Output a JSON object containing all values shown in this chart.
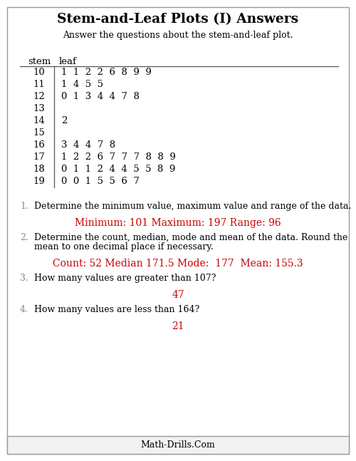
{
  "title": "Stem-and-Leaf Plots (I) Answers",
  "subtitle": "Answer the questions about the stem-and-leaf plot.",
  "stem_header": "stem",
  "leaf_header": "leaf",
  "stems": [
    10,
    11,
    12,
    13,
    14,
    15,
    16,
    17,
    18,
    19
  ],
  "leaves": [
    "1  1  2  2  6  8  9  9",
    "1  4  5  5",
    "0  1  3  4  4  7  8",
    "",
    "2",
    "",
    "3  4  4  7  8",
    "1  2  2  6  7  7  7  8  8  9",
    "0  1  1  2  4  4  5  5  8  9",
    "0  0  1  5  5  6  7"
  ],
  "questions": [
    {
      "number": "1.",
      "text": "Determine the minimum value, maximum value and range of the data.",
      "answer": "Minimum: 101 Maximum: 197 Range: 96"
    },
    {
      "number": "2.",
      "text_line1": "Determine the count, median, mode and mean of the data. Round the",
      "text_line2": "mean to one decimal place if necessary.",
      "answer": "Count: 52 Median 171.5 Mode:  177  Mean: 155.3"
    },
    {
      "number": "3.",
      "text": "How many values are greater than 107?",
      "answer": "47"
    },
    {
      "number": "4.",
      "text": "How many values are less than 164?",
      "answer": "21"
    }
  ],
  "footer": "Math-Drills.Com",
  "answer_color": "#cc0000",
  "text_color": "#000000",
  "number_color": "#888888",
  "bg_color": "#ffffff",
  "border_color": "#999999",
  "title_fontsize": 13.5,
  "subtitle_fontsize": 9,
  "table_fontsize": 9.5,
  "question_fontsize": 9,
  "answer_fontsize": 10,
  "footer_fontsize": 9
}
